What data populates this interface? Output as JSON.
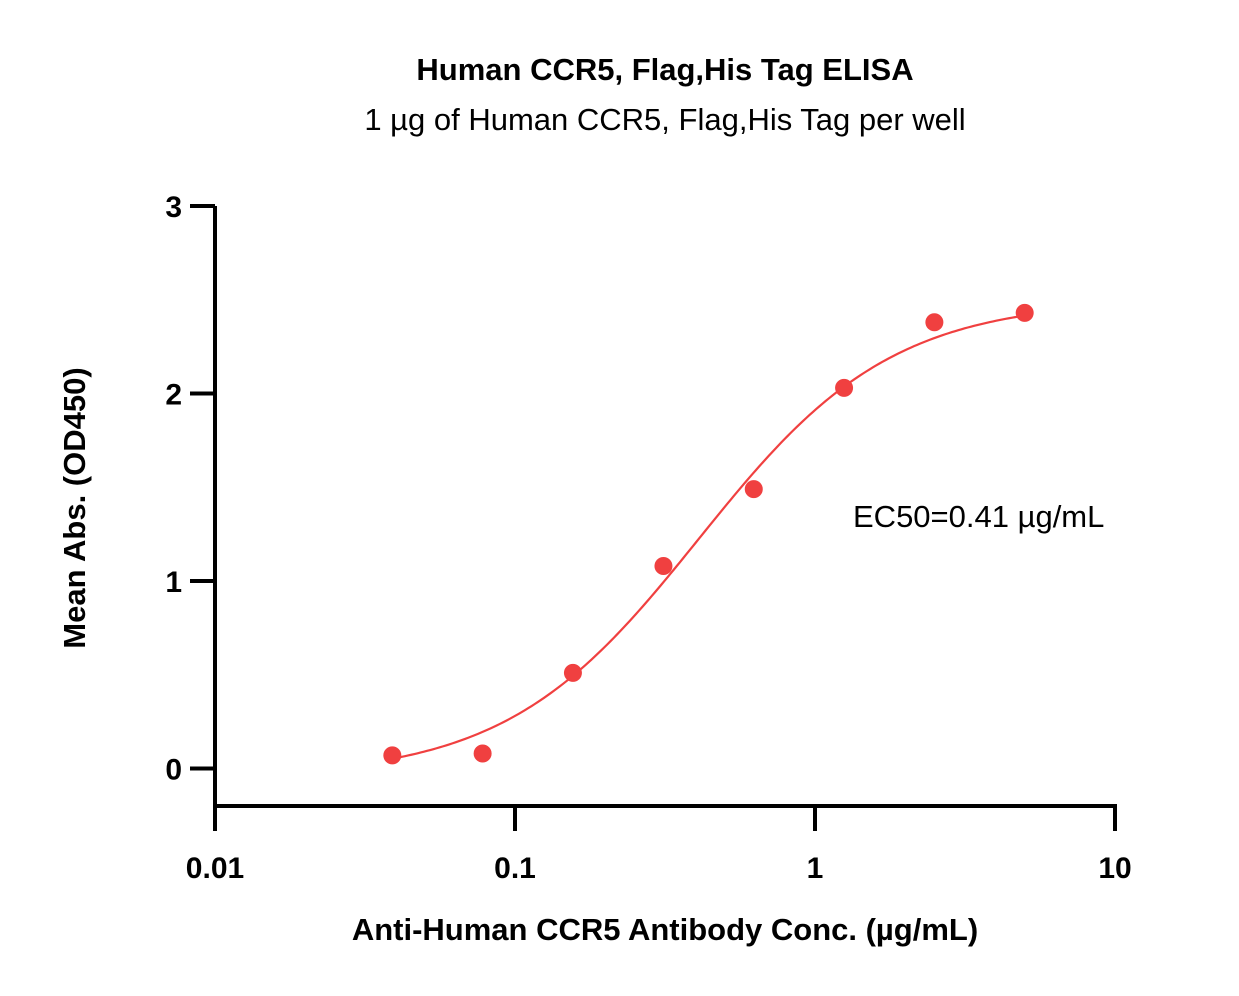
{
  "chart_data": {
    "type": "scatter",
    "title": "Human CCR5, Flag,His Tag ELISA",
    "subtitle": "1 µg of Human CCR5, Flag,His Tag per well",
    "xlabel": "Anti-Human CCR5 Antibody  Conc. (µg/mL)",
    "ylabel": "Mean Abs. (OD450)",
    "xscale": "log",
    "xlim": [
      0.01,
      10
    ],
    "ylim": [
      -0.2,
      3
    ],
    "xticks": [
      0.01,
      0.1,
      1,
      10
    ],
    "xtick_labels": [
      "0.01",
      "0.1",
      "1",
      "10"
    ],
    "yticks": [
      0,
      1,
      2,
      3
    ],
    "ytick_labels": [
      "0",
      "1",
      "2",
      "3"
    ],
    "grid": false,
    "series": [
      {
        "x": [
          0.039,
          0.078,
          0.156,
          0.3125,
          0.625,
          1.25,
          2.5,
          5.0
        ],
        "y": [
          0.07,
          0.08,
          0.51,
          1.08,
          1.49,
          2.03,
          2.38,
          2.43
        ],
        "color": "#f04040",
        "marker": "circle"
      }
    ],
    "fit_curve": {
      "model": "4PL",
      "bottom": -0.05,
      "top": 2.5,
      "ec50": 0.41,
      "hill": 1.35,
      "x_range": [
        0.039,
        5.0
      ],
      "color": "#f04040"
    },
    "annotations": [
      {
        "text": "EC50=0.41 µg/mL"
      }
    ]
  }
}
